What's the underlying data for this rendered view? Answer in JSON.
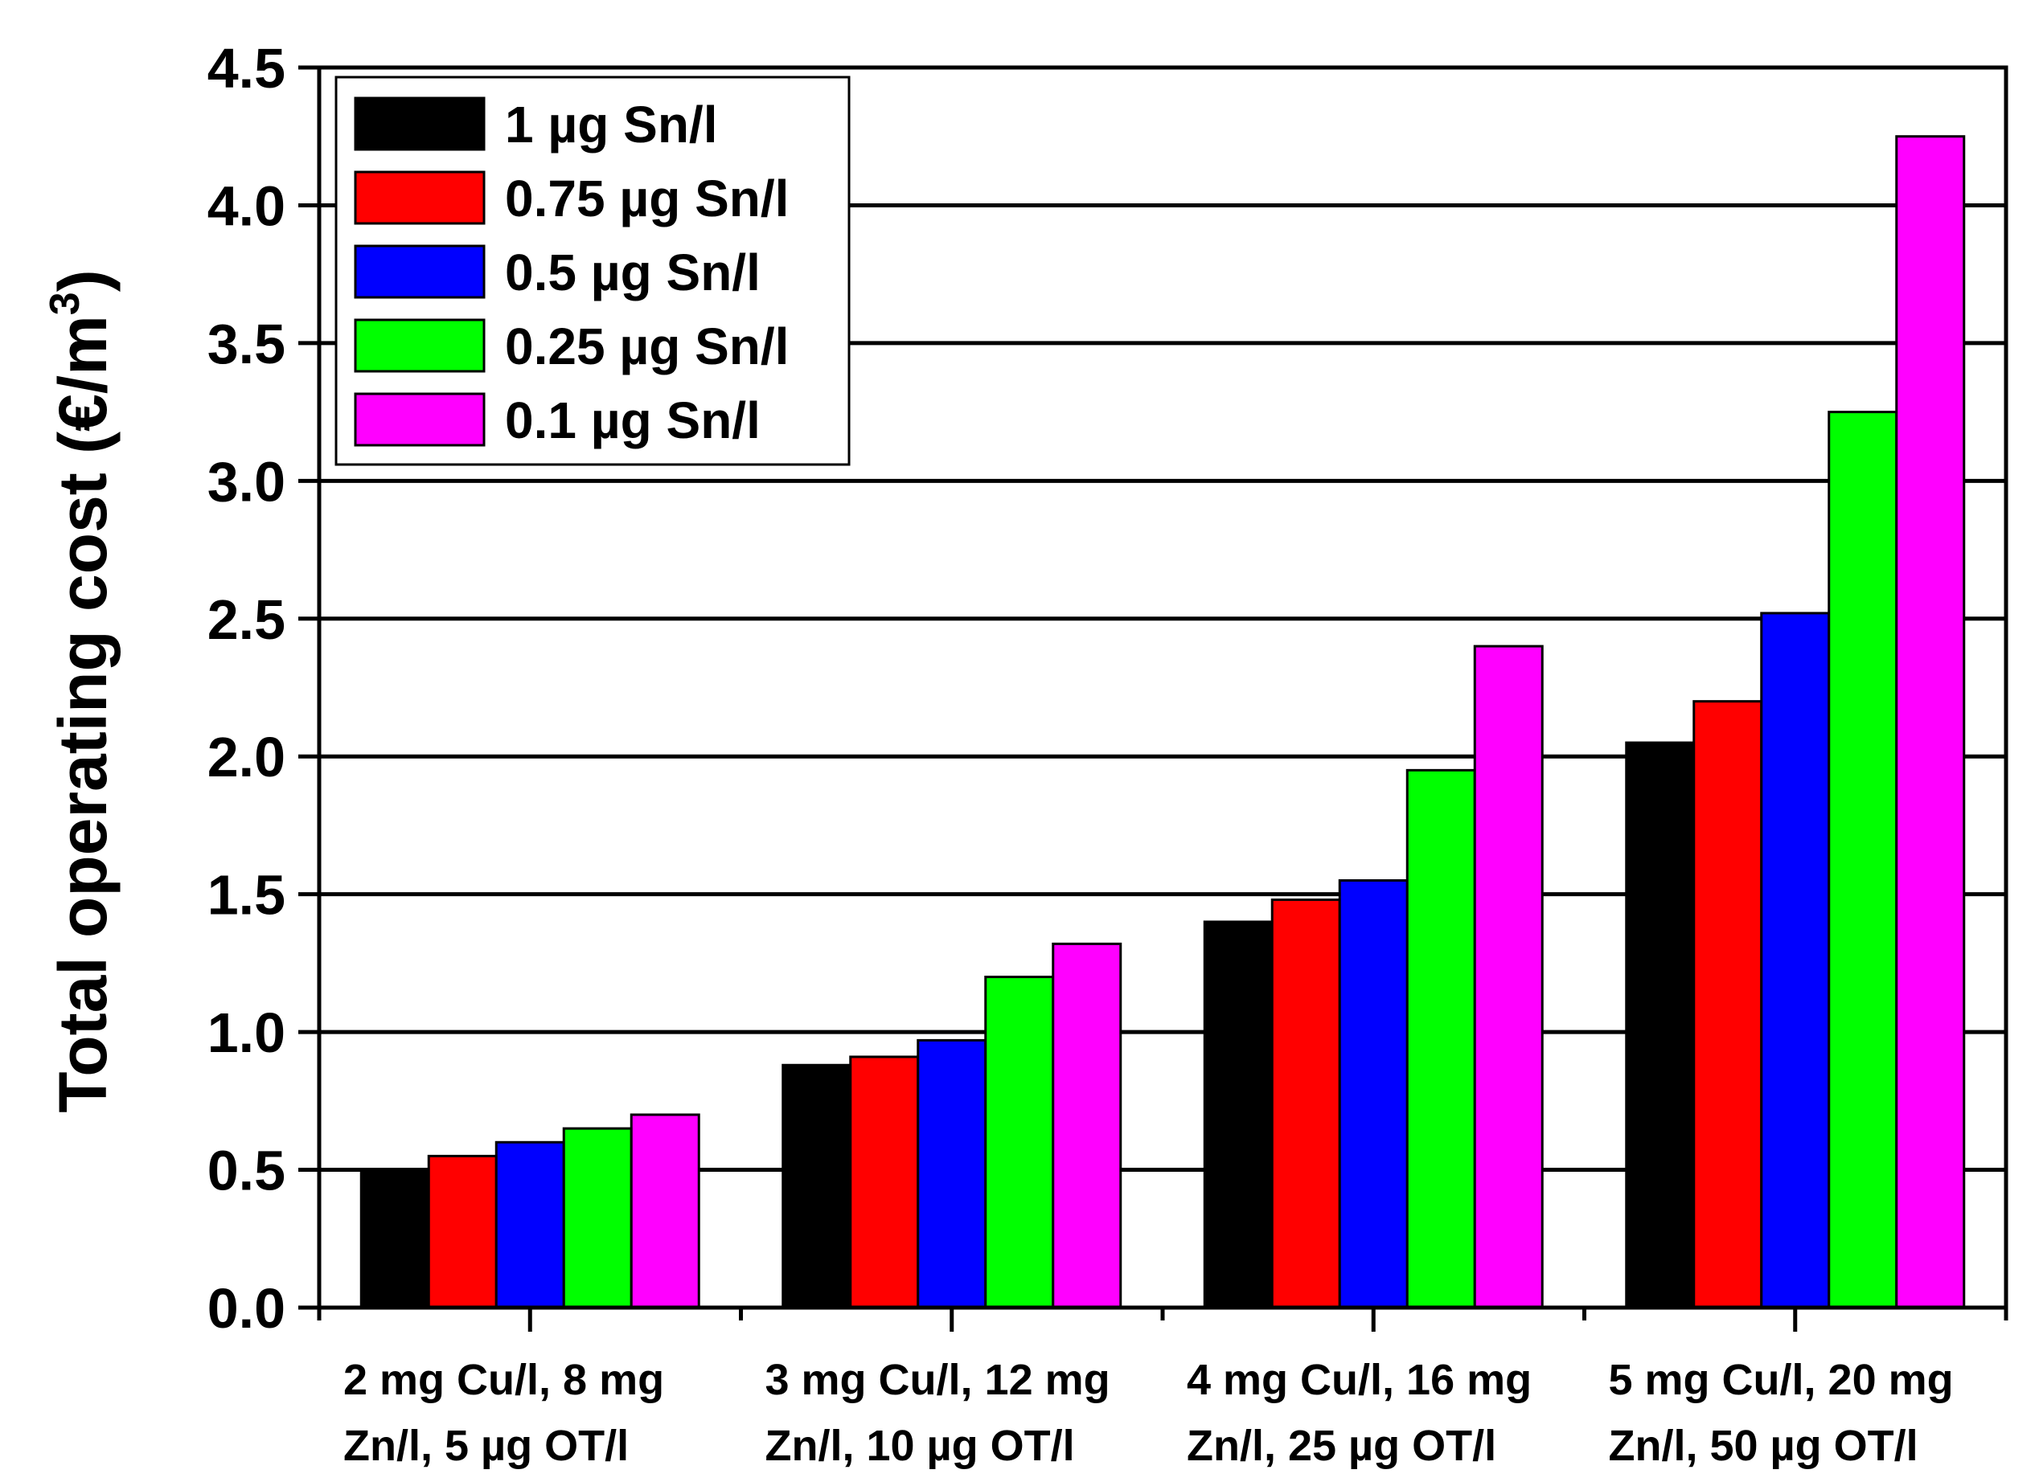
{
  "chart_data": {
    "type": "bar",
    "title": "",
    "xlabel": "",
    "ylabel": "Total operating cost (€/m",
    "ylabel_superscript": "3",
    "ylabel_suffix": ")",
    "ylim": [
      0,
      4.5
    ],
    "yticks": [
      "0.0",
      "0.5",
      "1.0",
      "1.5",
      "2.0",
      "2.5",
      "3.0",
      "3.5",
      "4.0",
      "4.5"
    ],
    "grid": true,
    "legend_position": "top-left",
    "categories": [
      [
        "2 mg Cu/l, 8 mg",
        "Zn/l, 5 µg OT/l"
      ],
      [
        "3 mg Cu/l, 12 mg",
        "Zn/l, 10 µg OT/l"
      ],
      [
        "4 mg Cu/l, 16 mg",
        "Zn/l, 25 µg OT/l"
      ],
      [
        "5 mg Cu/l, 20 mg",
        "Zn/l, 50 µg OT/l"
      ]
    ],
    "series": [
      {
        "name": "1 µg Sn/l",
        "color": "#000000",
        "values": [
          0.5,
          0.88,
          1.4,
          2.05
        ]
      },
      {
        "name": "0.75 µg Sn/l",
        "color": "#ff0000",
        "values": [
          0.55,
          0.91,
          1.48,
          2.2
        ]
      },
      {
        "name": "0.5 µg Sn/l",
        "color": "#0000ff",
        "values": [
          0.6,
          0.97,
          1.55,
          2.52
        ]
      },
      {
        "name": "0.25 µg Sn/l",
        "color": "#00ff00",
        "values": [
          0.65,
          1.2,
          1.95,
          3.25
        ]
      },
      {
        "name": "0.1 µg Sn/l",
        "color": "#ff00ff",
        "values": [
          0.7,
          1.32,
          2.4,
          4.25
        ]
      }
    ]
  }
}
